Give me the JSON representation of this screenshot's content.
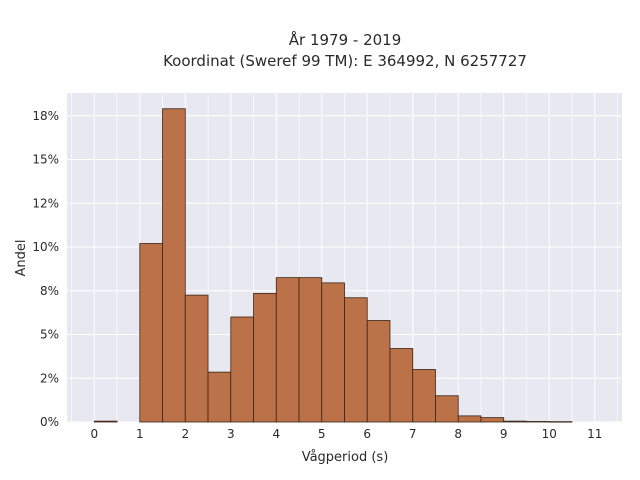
{
  "chart_data": {
    "type": "bar",
    "title": "År 1979 - 2019",
    "subtitle": "Koordinat (Sweref 99 TM): E 364992, N 6257727",
    "xlabel": "Vågperiod (s)",
    "ylabel": "Andel",
    "xlim": [
      -0.6,
      11.6
    ],
    "ylim": [
      0,
      0.188
    ],
    "x_ticks": [
      0,
      1,
      2,
      3,
      4,
      5,
      6,
      7,
      8,
      9,
      10,
      11
    ],
    "y_ticks": [
      {
        "value": 0,
        "label": "0%"
      },
      {
        "value": 0.025,
        "label": "2%"
      },
      {
        "value": 0.05,
        "label": "5%"
      },
      {
        "value": 0.075,
        "label": "8%"
      },
      {
        "value": 0.1,
        "label": "10%"
      },
      {
        "value": 0.125,
        "label": "12%"
      },
      {
        "value": 0.15,
        "label": "15%"
      },
      {
        "value": 0.175,
        "label": "18%"
      }
    ],
    "bin_width": 0.5,
    "bins": [
      {
        "start": 0.0,
        "value": 0.0005
      },
      {
        "start": 1.0,
        "value": 0.102
      },
      {
        "start": 1.5,
        "value": 0.179
      },
      {
        "start": 2.0,
        "value": 0.0725
      },
      {
        "start": 2.5,
        "value": 0.0285
      },
      {
        "start": 3.0,
        "value": 0.06
      },
      {
        "start": 3.5,
        "value": 0.0735
      },
      {
        "start": 4.0,
        "value": 0.0825
      },
      {
        "start": 4.5,
        "value": 0.0825
      },
      {
        "start": 5.0,
        "value": 0.0795
      },
      {
        "start": 5.5,
        "value": 0.071
      },
      {
        "start": 6.0,
        "value": 0.058
      },
      {
        "start": 6.5,
        "value": 0.042
      },
      {
        "start": 7.0,
        "value": 0.03
      },
      {
        "start": 7.5,
        "value": 0.015
      },
      {
        "start": 8.0,
        "value": 0.0035
      },
      {
        "start": 8.5,
        "value": 0.0025
      },
      {
        "start": 9.0,
        "value": 0.0005
      },
      {
        "start": 9.5,
        "value": 0.0003
      },
      {
        "start": 10.0,
        "value": 0.0002
      }
    ],
    "grid": true,
    "bar_color": "#bb7248",
    "bar_edge_color": "#3b2416",
    "background_color": "#e8e8f1",
    "grid_color": "#ffffff"
  }
}
